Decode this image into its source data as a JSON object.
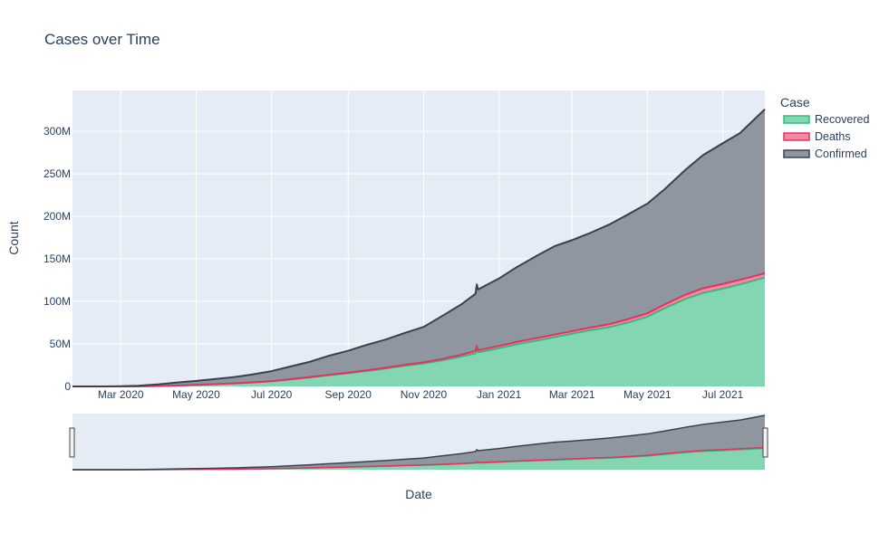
{
  "chart_data": {
    "type": "area",
    "title": "Cases over Time",
    "xlabel": "Date",
    "ylabel": "Count",
    "x_range": [
      "2020-01-22",
      "2021-08-04"
    ],
    "ylim": [
      0,
      348000000
    ],
    "x_ticks": [
      {
        "date": "2020-03-01",
        "label": "Mar 2020"
      },
      {
        "date": "2020-05-01",
        "label": "May 2020"
      },
      {
        "date": "2020-07-01",
        "label": "Jul 2020"
      },
      {
        "date": "2020-09-01",
        "label": "Sep 2020"
      },
      {
        "date": "2020-11-01",
        "label": "Nov 2020"
      },
      {
        "date": "2021-01-01",
        "label": "Jan 2021"
      },
      {
        "date": "2021-03-01",
        "label": "Mar 2021"
      },
      {
        "date": "2021-05-01",
        "label": "May 2021"
      },
      {
        "date": "2021-07-01",
        "label": "Jul 2021"
      }
    ],
    "y_ticks": [
      {
        "value": 0,
        "label": "0"
      },
      {
        "value": 50000000,
        "label": "50M"
      },
      {
        "value": 100000000,
        "label": "100M"
      },
      {
        "value": 150000000,
        "label": "150M"
      },
      {
        "value": 200000000,
        "label": "200M"
      },
      {
        "value": 250000000,
        "label": "250M"
      },
      {
        "value": 300000000,
        "label": "300M"
      }
    ],
    "grid": true,
    "legend": {
      "title": "Case",
      "position": "top-right"
    },
    "rangeslider": true,
    "x": [
      "2020-01-22",
      "2020-02-15",
      "2020-03-01",
      "2020-03-15",
      "2020-04-01",
      "2020-04-15",
      "2020-05-01",
      "2020-05-15",
      "2020-06-01",
      "2020-06-15",
      "2020-07-01",
      "2020-07-15",
      "2020-08-01",
      "2020-08-15",
      "2020-09-01",
      "2020-09-15",
      "2020-10-01",
      "2020-10-15",
      "2020-11-01",
      "2020-11-15",
      "2020-12-01",
      "2020-12-13",
      "2020-12-14",
      "2020-12-15",
      "2021-01-01",
      "2021-01-15",
      "2021-02-01",
      "2021-02-15",
      "2021-03-01",
      "2021-03-15",
      "2021-04-01",
      "2021-04-15",
      "2021-05-01",
      "2021-05-15",
      "2021-06-01",
      "2021-06-15",
      "2021-07-01",
      "2021-07-15",
      "2021-08-04"
    ],
    "series": [
      {
        "name": "Recovered",
        "color": "#2bbf7e",
        "fill": "#83d6b1",
        "values": [
          0,
          0,
          0,
          100000,
          500000,
          1000000,
          1800000,
          2500000,
          3500000,
          4500000,
          6000000,
          8000000,
          10500000,
          13000000,
          15500000,
          18000000,
          21000000,
          24000000,
          27000000,
          30500000,
          35000000,
          39000000,
          44000000,
          40000000,
          45000000,
          49500000,
          54000000,
          58000000,
          62000000,
          66000000,
          70000000,
          75000000,
          82000000,
          92000000,
          103000000,
          110000000,
          115000000,
          120000000,
          128000000
        ]
      },
      {
        "name": "Deaths",
        "color": "#e8305e",
        "fill": "#f28aa3",
        "values": [
          0,
          0,
          0,
          100000,
          500000,
          1100000,
          1900000,
          2700000,
          3700000,
          4800000,
          6300000,
          8400000,
          11000000,
          13500000,
          16200000,
          18800000,
          22000000,
          25000000,
          28300000,
          32000000,
          37000000,
          42000000,
          47500000,
          42500000,
          47700000,
          52300000,
          57000000,
          61000000,
          65000000,
          69000000,
          73500000,
          79000000,
          86000000,
          96500000,
          108000000,
          115500000,
          120500000,
          125500000,
          133000000
        ]
      },
      {
        "name": "Confirmed",
        "color": "#3a4150",
        "fill": "#8f96a0",
        "values": [
          0,
          0,
          200000,
          800000,
          2500000,
          4500000,
          6500000,
          8500000,
          11000000,
          14000000,
          18000000,
          23000000,
          29000000,
          35500000,
          42000000,
          48500000,
          55000000,
          62000000,
          70000000,
          82000000,
          96000000,
          109000000,
          120000000,
          114000000,
          127000000,
          140000000,
          154000000,
          165000000,
          172000000,
          180000000,
          191000000,
          202000000,
          215000000,
          232000000,
          255000000,
          272000000,
          286000000,
          298000000,
          326000000
        ]
      }
    ]
  }
}
